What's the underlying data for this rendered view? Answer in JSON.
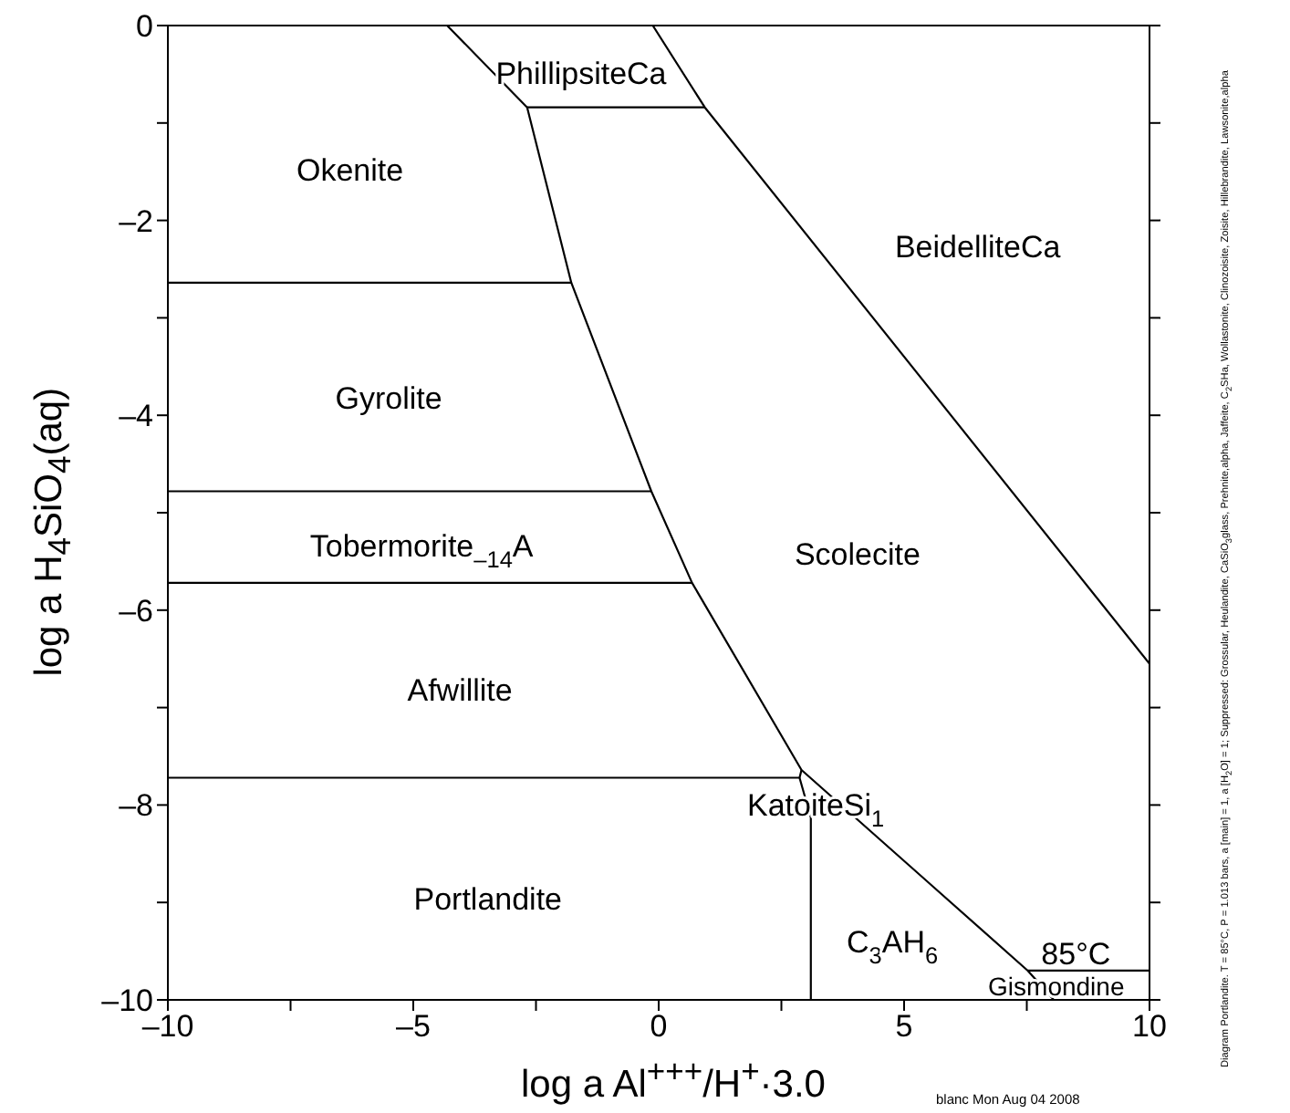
{
  "chart_data": {
    "type": "line",
    "xlabel": "log a Al$^{+++}$/H$^{+}$·3.0",
    "ylabel": "log a H$_{4}$SiO$_{4}$(aq)",
    "xlim": [
      -10,
      10
    ],
    "ylim": [
      -10,
      0
    ],
    "xticks": [
      {
        "value": -10,
        "label": "–10"
      },
      {
        "value": -7.5,
        "label": null
      },
      {
        "value": -5,
        "label": "–5"
      },
      {
        "value": -2.5,
        "label": null
      },
      0,
      {
        "value": 2.5,
        "label": null
      },
      5,
      {
        "value": 7.5,
        "label": null
      },
      10
    ],
    "yticks": [
      {
        "value": -10,
        "label": "–10"
      },
      {
        "value": -9,
        "label": null
      },
      {
        "value": -8,
        "label": "–8"
      },
      {
        "value": -7,
        "label": null
      },
      {
        "value": -6,
        "label": "–6"
      },
      {
        "value": -5,
        "label": null
      },
      {
        "value": -4,
        "label": "–4"
      },
      {
        "value": -3,
        "label": null
      },
      {
        "value": -2,
        "label": "–2"
      },
      {
        "value": -1,
        "label": null
      },
      0
    ],
    "grid": false,
    "legend": false,
    "marker": "none",
    "line_style": "solid",
    "series": [
      {
        "color": "#000000",
        "x": [
          -4.31,
          -2.68,
          -1.78,
          -0.15,
          0.68,
          2.91,
          7.52,
          8.05
        ],
        "values": [
          0,
          -0.84,
          -2.64,
          -4.78,
          -5.72,
          -7.64,
          -9.7,
          -10
        ]
      },
      {
        "color": "#000000",
        "x": [
          -2.68,
          0.94
        ],
        "values": [
          -0.84,
          -0.84
        ]
      },
      {
        "color": "#000000",
        "x": [
          -0.12,
          0.94,
          10
        ],
        "values": [
          0,
          -0.84,
          -6.55
        ]
      },
      {
        "color": "#000000",
        "x": [
          -10,
          -1.78
        ],
        "values": [
          -2.64,
          -2.64
        ]
      },
      {
        "color": "#000000",
        "x": [
          -10,
          -0.15
        ],
        "values": [
          -4.78,
          -4.78
        ]
      },
      {
        "color": "#000000",
        "x": [
          -10,
          0.68
        ],
        "values": [
          -5.72,
          -5.72
        ]
      },
      {
        "color": "#000000",
        "x": [
          -10,
          2.87,
          2.91
        ],
        "values": [
          -7.72,
          -7.72,
          -7.64
        ]
      },
      {
        "color": "#000000",
        "x": [
          2.87,
          3.1,
          3.1
        ],
        "values": [
          -7.72,
          -8.13,
          -10
        ]
      },
      {
        "color": "#000000",
        "x": [
          7.52,
          10
        ],
        "values": [
          -9.7,
          -9.7
        ]
      }
    ],
    "annotations": [
      "PhillipsiteCa",
      "Okenite",
      "BeidelliteCa",
      "Gyrolite",
      "Tobermorite$_{–14}$A",
      "Scolecite",
      "Afwillite",
      "KatoiteSi$_{1}$",
      "Portlandite",
      "C$_{3}$AH$_{6}$",
      "85°C",
      "Gismondine",
      "Diagram Portlandite. T = 85°C, P = 1.013 bars, a [main] = 1, a [H$_{2}$O] = 1; Suppressed: Grossular, Heulandite, CaSiO$_{3}$glass, Prehnite,alpha, Jaffeite, C$_{2}$SHa, Wollastonite, Clinozoisite, Zoisite, Hillebrandite, Lawsonite,alpha",
      "blanc Mon Aug 04 2008"
    ]
  }
}
